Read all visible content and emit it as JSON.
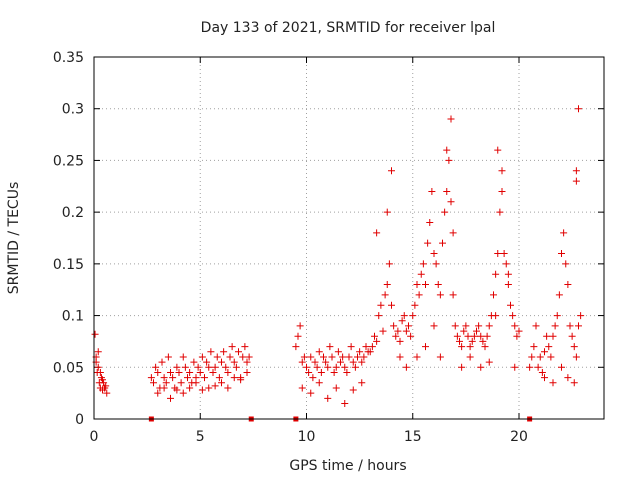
{
  "chart_data": {
    "type": "scatter",
    "title": "Day 133 of 2021, SRMTID for receiver lpal",
    "xlabel": "GPS time / hours",
    "ylabel": "SRMTID / TECUs",
    "xlim": [
      0,
      24
    ],
    "ylim": [
      0,
      0.35
    ],
    "x_ticks": [
      0,
      5,
      10,
      15,
      20
    ],
    "x_tick_labels": [
      "0",
      "5",
      "10",
      "15",
      "20"
    ],
    "y_ticks": [
      0,
      0.05,
      0.1,
      0.15,
      0.2,
      0.25,
      0.3,
      0.35
    ],
    "y_tick_labels": [
      "0",
      "0.05",
      "0.1",
      "0.15",
      "0.2",
      "0.25",
      "0.3",
      "0.35"
    ],
    "grid": true,
    "marker": "+",
    "color": "#e00000",
    "gap_markers_x": [
      2.7,
      7.4,
      9.5,
      20.5
    ],
    "series": [
      {
        "name": "SRMTID",
        "x": [
          0.05,
          0.1,
          0.15,
          0.2,
          0.25,
          0.3,
          0.35,
          0.4,
          0.45,
          0.5,
          0.55,
          0.6,
          0.1,
          0.2,
          0.3,
          0.4,
          0.5,
          2.7,
          2.8,
          2.9,
          3.0,
          3.1,
          3.2,
          3.3,
          3.4,
          3.5,
          3.6,
          3.7,
          3.8,
          3.9,
          4.0,
          4.1,
          4.2,
          4.3,
          4.4,
          4.5,
          4.6,
          4.7,
          4.8,
          4.9,
          5.0,
          5.1,
          5.2,
          5.3,
          5.4,
          5.5,
          5.6,
          5.7,
          5.8,
          5.9,
          6.0,
          6.1,
          6.2,
          6.3,
          6.4,
          6.5,
          6.6,
          6.7,
          6.8,
          6.9,
          7.0,
          7.1,
          7.2,
          7.3,
          3.0,
          3.3,
          3.6,
          3.9,
          4.2,
          4.5,
          4.8,
          5.1,
          5.4,
          5.7,
          6.0,
          6.3,
          6.6,
          6.9,
          7.2,
          9.5,
          9.6,
          9.7,
          9.8,
          9.9,
          10.0,
          10.1,
          10.2,
          10.3,
          10.4,
          10.5,
          10.6,
          10.7,
          10.8,
          10.9,
          11.0,
          11.1,
          11.2,
          11.3,
          11.4,
          11.5,
          11.6,
          11.7,
          11.8,
          11.9,
          12.0,
          12.1,
          12.2,
          12.3,
          12.4,
          12.5,
          12.6,
          12.7,
          12.8,
          12.9,
          9.8,
          10.2,
          10.6,
          11.0,
          11.4,
          11.8,
          12.2,
          12.6,
          13.0,
          13.1,
          13.2,
          13.3,
          13.4,
          13.5,
          13.6,
          13.7,
          13.8,
          13.9,
          14.0,
          14.1,
          14.2,
          14.3,
          14.4,
          14.5,
          14.6,
          14.7,
          14.8,
          14.9,
          15.0,
          15.1,
          15.2,
          15.3,
          15.4,
          15.5,
          15.6,
          15.7,
          15.8,
          15.9,
          16.0,
          16.1,
          16.2,
          16.3,
          16.4,
          16.5,
          16.6,
          16.7,
          16.8,
          16.9,
          17.0,
          17.1,
          17.2,
          17.3,
          17.4,
          17.5,
          17.6,
          17.7,
          17.8,
          17.9,
          18.0,
          18.1,
          18.2,
          18.3,
          18.4,
          18.5,
          18.6,
          18.7,
          18.8,
          18.9,
          19.0,
          19.1,
          19.2,
          19.3,
          19.4,
          19.5,
          19.6,
          19.7,
          19.8,
          19.9,
          20.0,
          13.3,
          13.8,
          14.0,
          14.4,
          14.7,
          15.2,
          15.6,
          16.0,
          16.3,
          16.6,
          16.8,
          16.9,
          17.3,
          17.7,
          18.2,
          18.6,
          18.9,
          19.0,
          19.2,
          19.5,
          19.8,
          20.5,
          20.6,
          20.7,
          20.8,
          20.9,
          21.0,
          21.1,
          21.2,
          21.3,
          21.4,
          21.5,
          21.6,
          21.7,
          21.8,
          21.9,
          22.0,
          22.1,
          22.2,
          22.3,
          22.4,
          22.5,
          22.6,
          22.7,
          22.8,
          22.9,
          21.2,
          21.6,
          22.0,
          22.3,
          22.6,
          22.7,
          22.8,
          22.7
        ],
        "y": [
          0.082,
          0.06,
          0.045,
          0.05,
          0.035,
          0.03,
          0.04,
          0.028,
          0.035,
          0.03,
          0.032,
          0.025,
          0.055,
          0.065,
          0.045,
          0.038,
          0.03,
          0.04,
          0.035,
          0.05,
          0.045,
          0.03,
          0.055,
          0.04,
          0.035,
          0.06,
          0.045,
          0.04,
          0.03,
          0.05,
          0.045,
          0.035,
          0.06,
          0.05,
          0.04,
          0.045,
          0.035,
          0.055,
          0.04,
          0.05,
          0.045,
          0.06,
          0.04,
          0.055,
          0.05,
          0.065,
          0.045,
          0.05,
          0.06,
          0.04,
          0.055,
          0.065,
          0.05,
          0.045,
          0.06,
          0.07,
          0.055,
          0.05,
          0.065,
          0.04,
          0.06,
          0.07,
          0.055,
          0.06,
          0.025,
          0.03,
          0.02,
          0.028,
          0.025,
          0.03,
          0.035,
          0.028,
          0.03,
          0.032,
          0.035,
          0.03,
          0.04,
          0.038,
          0.045,
          0.07,
          0.08,
          0.09,
          0.055,
          0.06,
          0.05,
          0.045,
          0.06,
          0.04,
          0.055,
          0.05,
          0.065,
          0.045,
          0.06,
          0.055,
          0.05,
          0.07,
          0.06,
          0.045,
          0.05,
          0.065,
          0.055,
          0.06,
          0.05,
          0.045,
          0.06,
          0.07,
          0.055,
          0.05,
          0.06,
          0.065,
          0.055,
          0.06,
          0.07,
          0.065,
          0.03,
          0.025,
          0.035,
          0.02,
          0.03,
          0.015,
          0.028,
          0.035,
          0.065,
          0.07,
          0.08,
          0.075,
          0.1,
          0.11,
          0.085,
          0.12,
          0.13,
          0.15,
          0.11,
          0.09,
          0.08,
          0.085,
          0.075,
          0.095,
          0.1,
          0.085,
          0.09,
          0.08,
          0.1,
          0.11,
          0.13,
          0.12,
          0.14,
          0.15,
          0.13,
          0.17,
          0.19,
          0.22,
          0.16,
          0.15,
          0.13,
          0.12,
          0.17,
          0.2,
          0.22,
          0.25,
          0.21,
          0.18,
          0.09,
          0.08,
          0.075,
          0.07,
          0.085,
          0.09,
          0.08,
          0.07,
          0.075,
          0.08,
          0.085,
          0.09,
          0.08,
          0.075,
          0.07,
          0.08,
          0.09,
          0.1,
          0.12,
          0.14,
          0.16,
          0.2,
          0.24,
          0.16,
          0.15,
          0.13,
          0.11,
          0.1,
          0.09,
          0.08,
          0.085,
          0.18,
          0.2,
          0.24,
          0.06,
          0.05,
          0.06,
          0.07,
          0.09,
          0.06,
          0.26,
          0.29,
          0.12,
          0.05,
          0.06,
          0.05,
          0.055,
          0.1,
          0.26,
          0.22,
          0.14,
          0.05,
          0.05,
          0.06,
          0.07,
          0.09,
          0.05,
          0.06,
          0.045,
          0.065,
          0.08,
          0.07,
          0.06,
          0.08,
          0.09,
          0.1,
          0.12,
          0.16,
          0.18,
          0.15,
          0.13,
          0.09,
          0.08,
          0.07,
          0.06,
          0.09,
          0.1,
          0.04,
          0.035,
          0.05,
          0.04,
          0.035,
          0.24,
          0.3,
          0.23
        ]
      }
    ]
  }
}
